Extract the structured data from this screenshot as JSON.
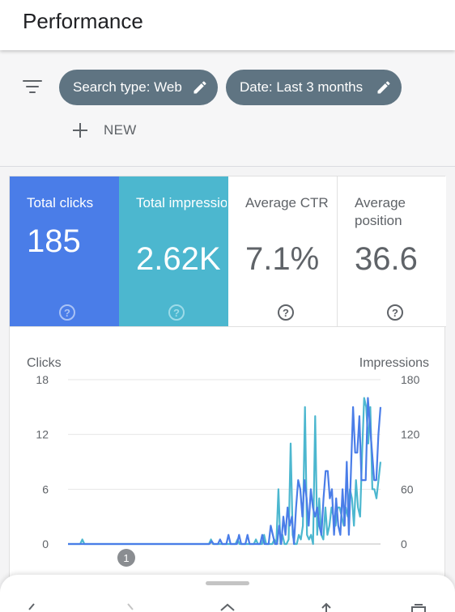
{
  "header": {
    "title": "Performance"
  },
  "filters": {
    "chips": [
      {
        "label": "Search type: Web"
      },
      {
        "label": "Date: Last 3 months"
      }
    ],
    "new_label": "NEW"
  },
  "metrics": [
    {
      "label": "Total clicks",
      "value": "185",
      "color": "#4a7de8",
      "selected": true
    },
    {
      "label": "Total impressions",
      "value": "2.62K",
      "color": "#4cb7cf",
      "selected": true
    },
    {
      "label": "Average CTR",
      "value": "7.1%",
      "selected": false
    },
    {
      "label": "Average position",
      "value": "36.6",
      "selected": false
    }
  ],
  "annotation_badge": "1",
  "chart_data": {
    "type": "line",
    "ylabel_left": "Clicks",
    "ylabel_right": "Impressions",
    "yticks_left": [
      "18",
      "12",
      "6",
      "0"
    ],
    "yticks_right": [
      "180",
      "120",
      "60",
      "0"
    ],
    "ylim_left": [
      0,
      18
    ],
    "ylim_right": [
      0,
      180
    ],
    "grid": true,
    "series": [
      {
        "name": "Clicks",
        "axis": "left",
        "color": "#4a7de8",
        "values": [
          0,
          0,
          0,
          0,
          0,
          0,
          0,
          0,
          0,
          0,
          0,
          0,
          0,
          0,
          0,
          0,
          0,
          0,
          0,
          0,
          0,
          0,
          0,
          0,
          0,
          0,
          0,
          0,
          0,
          0,
          0,
          0,
          0,
          0,
          0,
          0,
          0,
          0,
          0,
          0,
          0,
          0,
          0,
          0,
          0,
          0,
          0,
          0,
          0,
          0,
          0,
          0,
          0,
          0,
          0,
          0,
          0,
          0,
          0,
          0,
          0,
          0,
          0,
          0,
          0,
          0,
          0,
          0,
          0.3,
          0,
          0,
          0,
          0.5,
          0,
          0,
          0,
          1,
          0,
          0,
          0,
          0,
          1,
          0,
          0,
          0,
          1,
          0,
          0,
          0,
          0,
          0,
          0,
          1,
          0,
          0,
          0,
          2,
          1,
          0,
          0,
          2,
          0,
          3,
          1,
          4,
          2,
          3,
          0,
          4,
          7,
          6,
          3,
          7,
          5,
          2,
          6,
          4,
          3,
          4,
          2,
          1,
          5,
          8,
          8,
          5,
          6,
          1,
          5,
          2,
          1,
          6,
          2,
          9,
          1,
          8,
          15,
          10,
          10,
          14,
          7,
          7,
          7,
          16,
          13,
          10,
          7,
          7,
          12,
          15
        ]
      },
      {
        "name": "Impressions",
        "axis": "right",
        "color": "#4cb7cf",
        "values": [
          0,
          0,
          0,
          0,
          0,
          0,
          0,
          5,
          0,
          0,
          0,
          0,
          0,
          0,
          0,
          0,
          0,
          0,
          0,
          0,
          0,
          0,
          0,
          0,
          0,
          0,
          0,
          0,
          0,
          0,
          0,
          0,
          0,
          0,
          0,
          0,
          0,
          0,
          0,
          0,
          0,
          0,
          0,
          0,
          0,
          0,
          0,
          0,
          0,
          0,
          0,
          0,
          0,
          0,
          0,
          0,
          0,
          0,
          0,
          0,
          0,
          0,
          0,
          0,
          0,
          0,
          0,
          0,
          0,
          0,
          5,
          0,
          0,
          0,
          0,
          0,
          0,
          0,
          0,
          0,
          0,
          0,
          0,
          5,
          0,
          0,
          0,
          0,
          0,
          0,
          0,
          0,
          5,
          0,
          0,
          0,
          10,
          0,
          0,
          0,
          0,
          5,
          0,
          60,
          0,
          10,
          0,
          0,
          5,
          110,
          10,
          0,
          0,
          10,
          5,
          20,
          150,
          10,
          5,
          10,
          0,
          140,
          10,
          50,
          10,
          5,
          40,
          10,
          20,
          40,
          30,
          20,
          40,
          40,
          30,
          20,
          40,
          30,
          60,
          50,
          20,
          70,
          40,
          30,
          100,
          160,
          150,
          110,
          150,
          60,
          60,
          50,
          70,
          90
        ]
      }
    ]
  },
  "bottom_sheet": {
    "nav_icons": [
      "back-icon",
      "forward-icon",
      "home-icon",
      "share-icon",
      "tabs-icon"
    ]
  }
}
